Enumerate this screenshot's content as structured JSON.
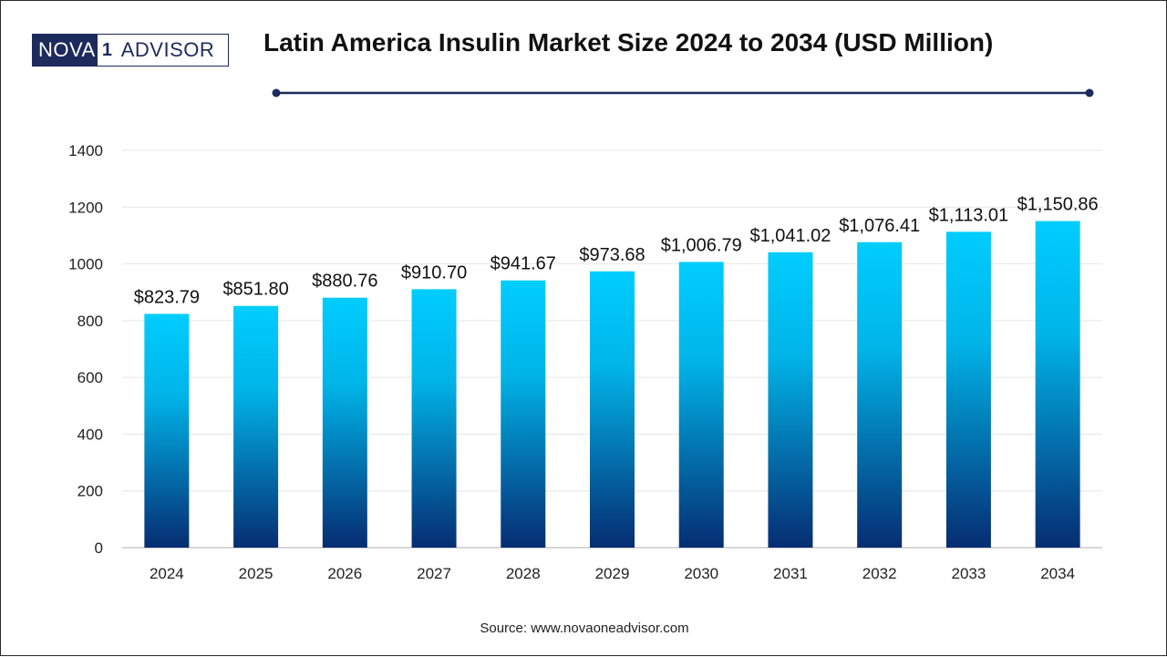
{
  "brand": {
    "logo_part1": "NOVA",
    "logo_box": "1",
    "logo_part2": "ADVISOR"
  },
  "title": "Latin America Insulin Market Size 2024 to 2034 (USD Million)",
  "source": "Source: www.novaoneadvisor.com",
  "colors": {
    "bar_top": "#00cdfe",
    "bar_bottom": "#062d72",
    "title_rule": "#1d2a5c",
    "grid": "#e6e6e6",
    "axis": "#bfbfbf"
  },
  "chart_data": {
    "type": "bar",
    "title": "Latin America Insulin Market Size 2024 to 2034 (USD Million)",
    "xlabel": "",
    "ylabel": "",
    "categories": [
      "2024",
      "2025",
      "2026",
      "2027",
      "2028",
      "2029",
      "2030",
      "2031",
      "2032",
      "2033",
      "2034"
    ],
    "values": [
      823.79,
      851.8,
      880.76,
      910.7,
      941.67,
      973.68,
      1006.79,
      1041.02,
      1076.41,
      1113.01,
      1150.86
    ],
    "data_labels": [
      "$823.79",
      "$851.80",
      "$880.76",
      "$910.70",
      "$941.67",
      "$973.68",
      "$1,006.79",
      "$1,041.02",
      "$1,076.41",
      "$1,113.01",
      "$1,150.86"
    ],
    "ylim": [
      0,
      1400
    ],
    "yticks": [
      0,
      200,
      400,
      600,
      800,
      1000,
      1200,
      1400
    ],
    "grid": true,
    "legend": "none"
  }
}
